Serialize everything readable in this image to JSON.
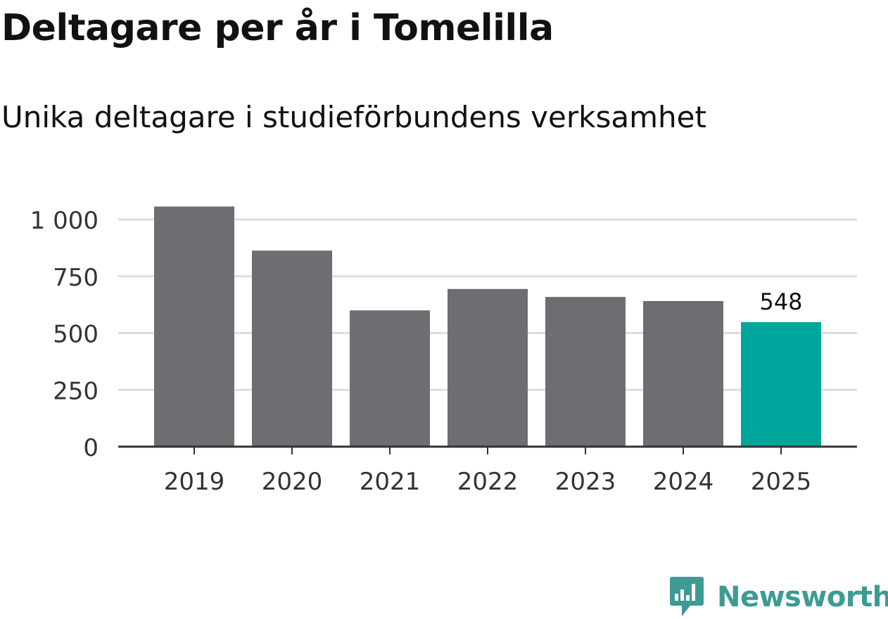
{
  "chart_data": {
    "type": "bar",
    "title": "Deltagare per år i Tomelilla",
    "subtitle": "Unika deltagare i studieförbundens verksamhet",
    "categories": [
      "2019",
      "2020",
      "2021",
      "2022",
      "2023",
      "2024",
      "2025"
    ],
    "values": [
      1057,
      863,
      600,
      694,
      659,
      641,
      548
    ],
    "highlight_index": 6,
    "highlight_label": "548",
    "yticks": [
      0,
      250,
      500,
      750,
      1000
    ],
    "ytick_labels": [
      "0",
      "250",
      "500",
      "750",
      "1 000"
    ],
    "ylim": [
      0,
      1000
    ],
    "grid": true,
    "xlabel": "",
    "ylabel": ""
  },
  "colors": {
    "bar": "#6e6d72",
    "highlight": "#00a59b",
    "grid": "#dddddd",
    "axis": "#333333",
    "text": "#333333",
    "brand": "#3d9b94"
  },
  "brand": {
    "name": "Newsworthy",
    "icon": "chart-bubble-icon"
  }
}
